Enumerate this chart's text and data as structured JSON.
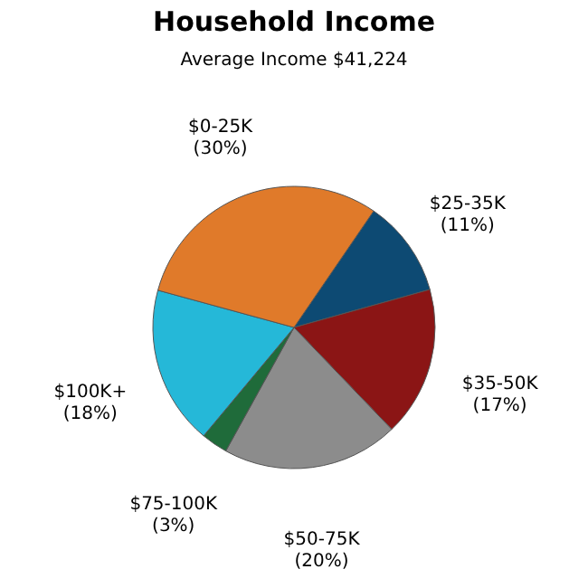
{
  "chart_data": {
    "type": "pie",
    "title": "Household Income",
    "subtitle": "Average Income  $41,224",
    "categories": [
      "$25-35K",
      "$35-50K",
      "$50-75K",
      "$75-100K",
      "$100K+",
      "$0-25K"
    ],
    "values": [
      11,
      17,
      20,
      3,
      18,
      30
    ],
    "colors": [
      "#0d4a73",
      "#8b1515",
      "#8c8c8c",
      "#1f6b3a",
      "#25b8d8",
      "#e07a2a"
    ],
    "value_labels": [
      "(11%)",
      "(17%)",
      "(20%)",
      "(3%)",
      "(18%)",
      "(30%)"
    ],
    "legend": false
  }
}
